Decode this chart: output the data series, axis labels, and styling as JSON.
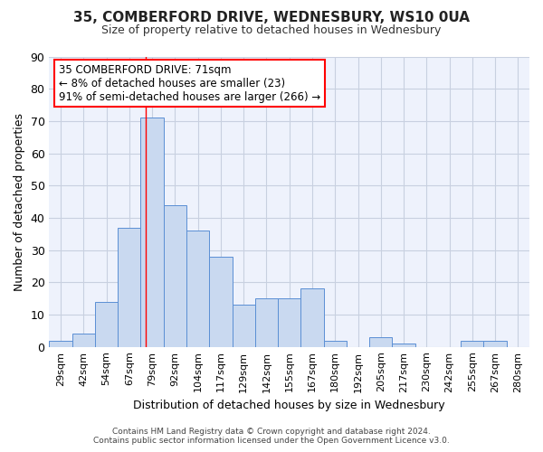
{
  "title_line1": "35, COMBERFORD DRIVE, WEDNESBURY, WS10 0UA",
  "title_line2": "Size of property relative to detached houses in Wednesbury",
  "xlabel": "Distribution of detached houses by size in Wednesbury",
  "ylabel": "Number of detached properties",
  "categories": [
    "29sqm",
    "42sqm",
    "54sqm",
    "67sqm",
    "79sqm",
    "92sqm",
    "104sqm",
    "117sqm",
    "129sqm",
    "142sqm",
    "155sqm",
    "167sqm",
    "180sqm",
    "192sqm",
    "205sqm",
    "217sqm",
    "230sqm",
    "242sqm",
    "255sqm",
    "267sqm",
    "280sqm"
  ],
  "values": [
    2,
    4,
    14,
    37,
    71,
    44,
    36,
    28,
    13,
    15,
    15,
    18,
    2,
    0,
    3,
    1,
    0,
    0,
    2,
    2,
    0
  ],
  "bar_color": "#c9d9f0",
  "bar_edge_color": "#5b8fd4",
  "ylim": [
    0,
    90
  ],
  "yticks": [
    0,
    10,
    20,
    30,
    40,
    50,
    60,
    70,
    80,
    90
  ],
  "vline_x_idx": 3.72,
  "annotation_box_text": [
    "35 COMBERFORD DRIVE: 71sqm",
    "← 8% of detached houses are smaller (23)",
    "91% of semi-detached houses are larger (266) →"
  ],
  "bg_color": "#eef2fc",
  "grid_color": "#c8d0e0",
  "footer_line1": "Contains HM Land Registry data © Crown copyright and database right 2024.",
  "footer_line2": "Contains public sector information licensed under the Open Government Licence v3.0."
}
